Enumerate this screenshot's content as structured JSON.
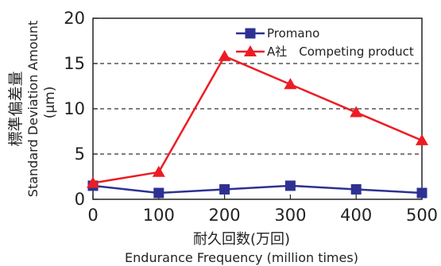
{
  "chart_data": {
    "type": "line",
    "x": [
      0,
      100,
      200,
      300,
      400,
      500
    ],
    "series": [
      {
        "name": "Promano",
        "values": [
          1.5,
          0.7,
          1.1,
          1.5,
          1.1,
          0.7
        ],
        "color": "#2e3192",
        "marker": "square"
      },
      {
        "name": "A社　Competing product",
        "values": [
          1.8,
          3.0,
          15.8,
          12.7,
          9.6,
          6.5
        ],
        "color": "#ed1c24",
        "marker": "triangle"
      }
    ],
    "xlabel": "耐久回数(万回)",
    "xlabel_en": "Endurance Frequency (million times)",
    "ylabel": "標準偏差量",
    "ylabel_en": "Standard Deviation Amount",
    "ylabel_unit": "(μm)",
    "xlim": [
      0,
      500
    ],
    "ylim": [
      0,
      20
    ],
    "xticks": [
      "0",
      "100",
      "200",
      "300",
      "400",
      "500"
    ],
    "yticks": [
      "0",
      "5",
      "10",
      "15",
      "20"
    ],
    "grid": "horizontal dashed",
    "legend_position": "top-right"
  }
}
